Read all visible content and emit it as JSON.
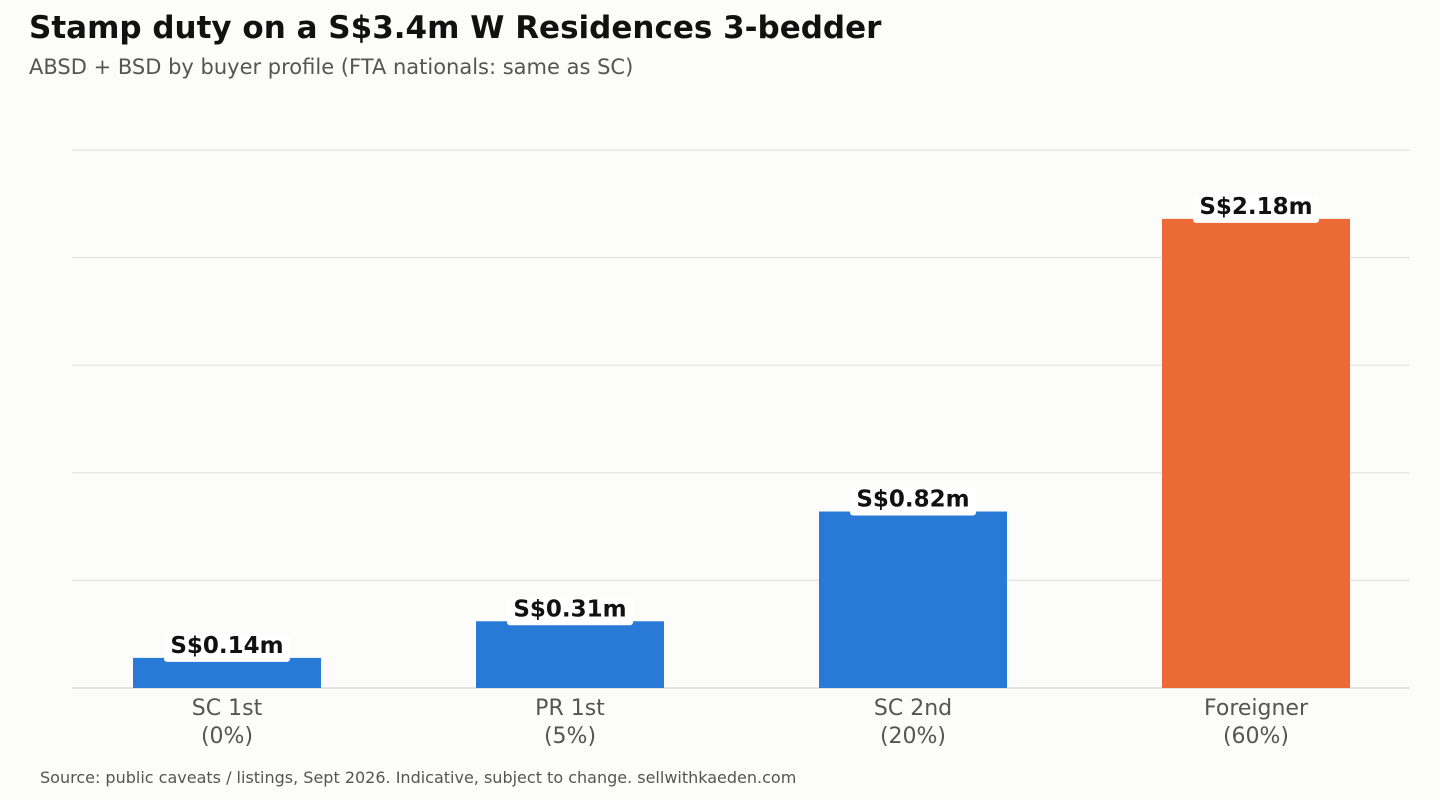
{
  "header": {
    "title": "Stamp duty on a S$3.4m W Residences 3-bedder",
    "subtitle": "ABSD + BSD by buyer profile (FTA nationals: same as SC)"
  },
  "footer": {
    "source": "Source: public caveats / listings, Sept 2026. Indicative, subject to change. sellwithkaeden.com"
  },
  "chart_data": {
    "type": "bar",
    "title": "Stamp duty on a S$3.4m W Residences 3-bedder",
    "subtitle": "ABSD + BSD by buyer profile (FTA nationals: same as SC)",
    "categories": [
      {
        "line1": "SC 1st",
        "line2": "(0%)"
      },
      {
        "line1": "PR 1st",
        "line2": "(5%)"
      },
      {
        "line1": "SC 2nd",
        "line2": "(20%)"
      },
      {
        "line1": "Foreigner",
        "line2": "(60%)"
      }
    ],
    "values": [
      0.14,
      0.31,
      0.82,
      2.18
    ],
    "value_labels": [
      "S$0.14m",
      "S$0.31m",
      "S$0.82m",
      "S$2.18m"
    ],
    "colors": [
      "#2979d6",
      "#2979d6",
      "#2979d6",
      "#eb6a35"
    ],
    "ylim": [
      0,
      2.5
    ],
    "yticks": [
      0,
      0.5,
      1.0,
      1.5,
      2.0,
      2.5
    ],
    "grid": true,
    "xlabel": "",
    "ylabel": ""
  }
}
